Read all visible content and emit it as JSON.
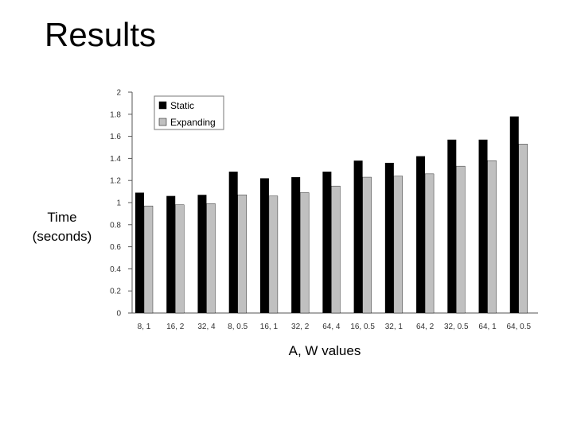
{
  "slide": {
    "title": "Results"
  },
  "chart_data": {
    "type": "bar",
    "title": "",
    "xlabel": "A, W values",
    "ylabel": "Time (seconds)",
    "ylabel_lines": [
      "Time",
      "(seconds)"
    ],
    "ylim": [
      0,
      2
    ],
    "yticks": [
      "0",
      "0.2",
      "0.4",
      "0.6",
      "0.8",
      "1",
      "1.2",
      "1.4",
      "1.6",
      "1.8",
      "2"
    ],
    "grid": false,
    "legend_position": "top-left",
    "categories": [
      "8, 1",
      "16, 2",
      "32, 4",
      "8, 0.5",
      "16, 1",
      "32, 2",
      "64, 4",
      "16, 0.5",
      "32, 1",
      "64, 2",
      "32, 0.5",
      "64, 1",
      "64, 0.5"
    ],
    "series": [
      {
        "name": "Static",
        "color": "#000000",
        "values": [
          1.09,
          1.06,
          1.07,
          1.28,
          1.22,
          1.23,
          1.28,
          1.38,
          1.36,
          1.42,
          1.57,
          1.57,
          1.78
        ]
      },
      {
        "name": "Expanding",
        "color": "#c0c0c0",
        "values": [
          0.97,
          0.98,
          0.99,
          1.07,
          1.06,
          1.09,
          1.15,
          1.23,
          1.24,
          1.26,
          1.33,
          1.38,
          1.53
        ]
      }
    ]
  }
}
